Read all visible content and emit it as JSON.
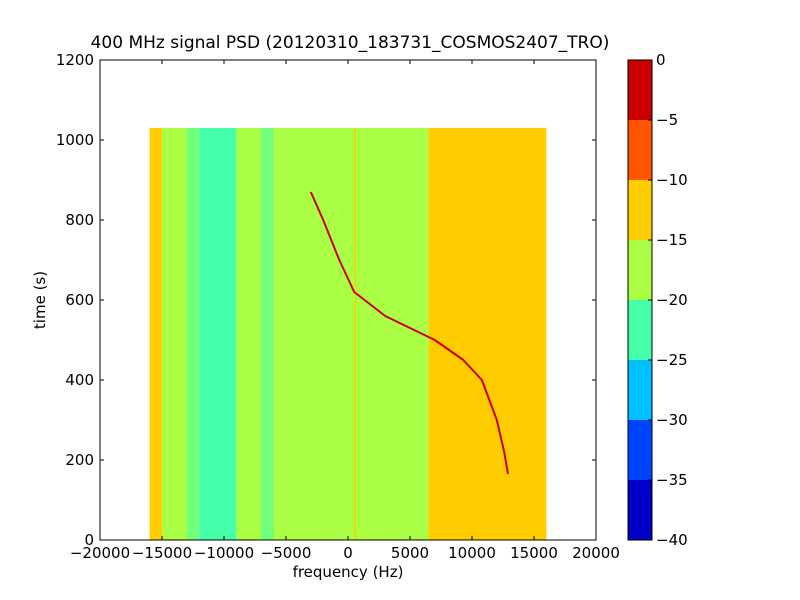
{
  "chart_data": [
    {
      "type": "heatmap",
      "title": "400 MHz signal PSD (20120310_183731_COSMOS2407_TRO)",
      "xlabel": "frequency (Hz)",
      "ylabel": "time (s)",
      "xlim": [
        -20000,
        20000
      ],
      "ylim": [
        0,
        1200
      ],
      "xticks": [
        -20000,
        -15000,
        -10000,
        -5000,
        0,
        5000,
        10000,
        15000,
        20000
      ],
      "xtick_labels": [
        "−20000",
        "−15000",
        "−10000",
        "−5000",
        "0",
        "5000",
        "10000",
        "15000",
        "20000"
      ],
      "yticks": [
        0,
        200,
        400,
        600,
        800,
        1000,
        1200
      ],
      "ytick_labels": [
        "0",
        "200",
        "400",
        "600",
        "800",
        "1000",
        "1200"
      ],
      "grid": false,
      "data_extent": {
        "freq": [
          -16000,
          16000
        ],
        "time": [
          0,
          1030
        ]
      },
      "frequency_bands": [
        {
          "freq": [
            -16000,
            -15000
          ],
          "level": -12.5
        },
        {
          "freq": [
            -15000,
            -12000
          ],
          "level": -17.5
        },
        {
          "freq": [
            -12000,
            -9000
          ],
          "level": -22.5
        },
        {
          "freq": [
            -9000,
            6500
          ],
          "level": -17.5
        },
        {
          "freq": [
            6500,
            16000
          ],
          "level": -12.5
        }
      ],
      "low_band_lines": [
        {
          "freq": [
            -13000,
            -12000
          ],
          "level": -22.5
        },
        {
          "freq": [
            -7000,
            -6000
          ],
          "level": -22.5
        }
      ],
      "carrier_line": {
        "freq": 600,
        "level": -12.5
      },
      "signal_trace": {
        "level": -2.5,
        "points": [
          {
            "time": 870,
            "freq": -3000
          },
          {
            "time": 800,
            "freq": -2000
          },
          {
            "time": 700,
            "freq": -700
          },
          {
            "time": 620,
            "freq": 500
          },
          {
            "time": 560,
            "freq": 3000
          },
          {
            "time": 500,
            "freq": 7000
          },
          {
            "time": 450,
            "freq": 9300
          },
          {
            "time": 400,
            "freq": 10800
          },
          {
            "time": 300,
            "freq": 12000
          },
          {
            "time": 220,
            "freq": 12600
          },
          {
            "time": 165,
            "freq": 12900
          }
        ]
      },
      "colorbar": {
        "range": [
          -40,
          0
        ],
        "ticks": [
          0,
          -5,
          -10,
          -15,
          -20,
          -25,
          -30,
          -35,
          -40
        ],
        "tick_labels": [
          "0",
          "−5",
          "−10",
          "−15",
          "−20",
          "−25",
          "−30",
          "−35",
          "−40"
        ],
        "bands": [
          {
            "from": -5,
            "to": 0,
            "color": "#cc0000"
          },
          {
            "from": -10,
            "to": -5,
            "color": "#ff5500"
          },
          {
            "from": -15,
            "to": -10,
            "color": "#ffcc00"
          },
          {
            "from": -20,
            "to": -15,
            "color": "#aaff44"
          },
          {
            "from": -25,
            "to": -20,
            "color": "#44ffaa"
          },
          {
            "from": -30,
            "to": -25,
            "color": "#00c0ff"
          },
          {
            "from": -35,
            "to": -30,
            "color": "#0044ff"
          },
          {
            "from": -40,
            "to": -35,
            "color": "#0000c8"
          }
        ]
      }
    }
  ]
}
